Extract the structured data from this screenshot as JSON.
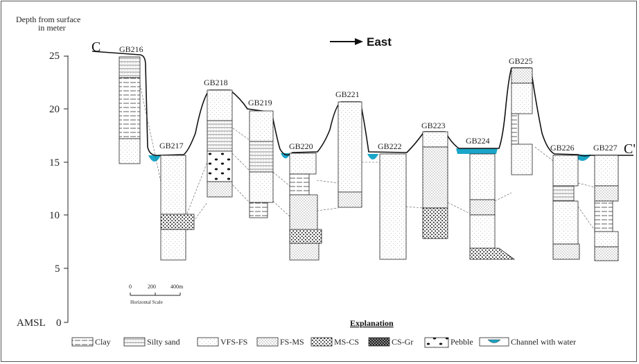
{
  "axis": {
    "title_line1": "Depth from surface",
    "title_line2": "in meter",
    "ticks": [
      "25",
      "20",
      "15",
      "10",
      "5"
    ],
    "zero_label": "AMSL",
    "zero_value": "0"
  },
  "section": {
    "start": "C",
    "end": "C'",
    "direction": "East"
  },
  "wells": [
    "GB216",
    "GB217",
    "GB218",
    "GB219",
    "GB220",
    "GB221",
    "GB222",
    "GB223",
    "GB224",
    "GB225",
    "GB226",
    "GB227"
  ],
  "scale": {
    "zero": "0",
    "mid": "200",
    "end": "400m",
    "caption": "Horizontal Scale"
  },
  "legend": {
    "title": "Explanation",
    "items": [
      "Clay",
      "Silty sand",
      "VFS-FS",
      "FS-MS",
      "MS-CS",
      "CS-Gr",
      "Pebble",
      "Channel with water"
    ]
  },
  "colors": {
    "water": "#1aa6c8",
    "line": "#222222"
  }
}
